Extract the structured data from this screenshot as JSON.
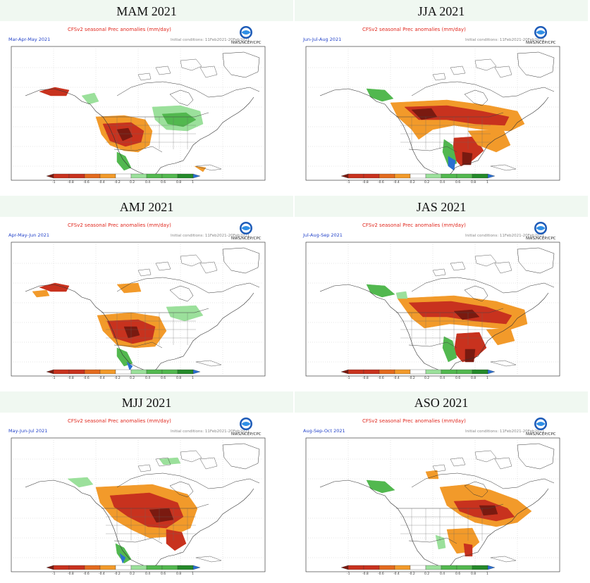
{
  "panels": [
    {
      "title": "MAM 2021",
      "period": "Mar-Apr-May 2021",
      "pattern": "mam"
    },
    {
      "title": "JJA 2021",
      "period": "Jun-Jul-Aug 2021",
      "pattern": "jja"
    },
    {
      "title": "AMJ 2021",
      "period": "Apr-May-Jun 2021",
      "pattern": "amj"
    },
    {
      "title": "JAS 2021",
      "period": "Jul-Aug-Sep 2021",
      "pattern": "jas"
    },
    {
      "title": "MJJ 2021",
      "period": "May-Jun-Jul 2021",
      "pattern": "mjj"
    },
    {
      "title": "ASO 2021",
      "period": "Aug-Sep-Oct 2021",
      "pattern": "aso"
    }
  ],
  "map_header": "CFSv2 seasonal Prec anomalies (mm/day)",
  "agency": "NWS/NCEP/CPC",
  "initial_conditions": "Initial conditions: 11Feb2021-20Feb2021",
  "colorbar_ticks": [
    "-1",
    "-0.8",
    "-0.6",
    "-0.4",
    "-0.2",
    "0.2",
    "0.4",
    "0.6",
    "0.8",
    "1"
  ],
  "colors": {
    "dry_strong": "#7a1a10",
    "dry_red": "#c8321e",
    "dry_orange": "#e36a1e",
    "dry_light": "#f29a2a",
    "wet_light": "#9be09b",
    "wet": "#52b84f",
    "wet_strong": "#248a2a",
    "wet_blue": "#2a6fd1",
    "title_band": "#f0f8f1"
  }
}
